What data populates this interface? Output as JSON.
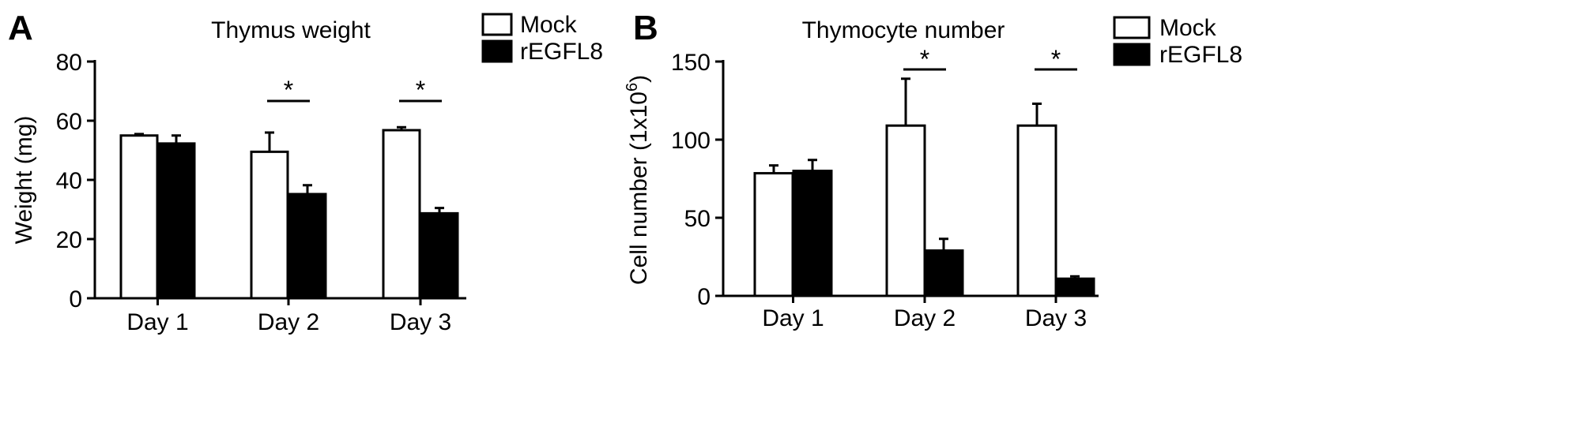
{
  "chart_data": [
    {
      "type": "bar",
      "panel_label": "A",
      "title": "Thymus weight",
      "xlabel": "",
      "ylabel": "Weight (mg)",
      "ylim": [
        0,
        80
      ],
      "yticks": [
        0,
        20,
        40,
        60,
        80
      ],
      "categories": [
        "Day 1",
        "Day 2",
        "Day 3"
      ],
      "series": [
        {
          "name": "Mock",
          "fill": "#ffffff",
          "values": [
            55,
            49.5,
            56.8
          ],
          "errors": [
            0.5,
            6.5,
            1.0
          ]
        },
        {
          "name": "rEGFL8",
          "fill": "#000000",
          "values": [
            52.3,
            35.2,
            28.7
          ],
          "errors": [
            2.7,
            3.0,
            1.8
          ]
        }
      ],
      "significance": [
        {
          "category": 1,
          "label": "*"
        },
        {
          "category": 2,
          "label": "*"
        }
      ],
      "legend_position": "top-right",
      "grid": false
    },
    {
      "type": "bar",
      "panel_label": "B",
      "title": "Thymocyte number",
      "xlabel": "",
      "ylabel": "Cell number (1x10",
      "ylabel_superscript": "6",
      "ylabel_suffix": ")",
      "ylim": [
        0,
        150
      ],
      "yticks": [
        0,
        50,
        100,
        150
      ],
      "categories": [
        "Day 1",
        "Day 2",
        "Day 3"
      ],
      "series": [
        {
          "name": "Mock",
          "fill": "#ffffff",
          "values": [
            78.5,
            109,
            109
          ],
          "errors": [
            5,
            30,
            14
          ]
        },
        {
          "name": "rEGFL8",
          "fill": "#000000",
          "values": [
            80,
            29,
            11
          ],
          "errors": [
            7,
            7.5,
            1.5
          ]
        }
      ],
      "significance": [
        {
          "category": 1,
          "label": "*"
        },
        {
          "category": 2,
          "label": "*"
        }
      ],
      "legend_position": "top-right",
      "grid": false
    }
  ]
}
